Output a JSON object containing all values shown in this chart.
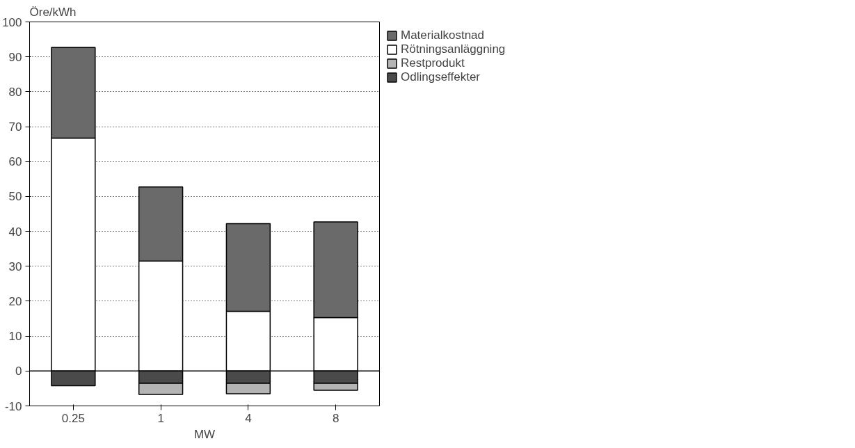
{
  "chart_data": {
    "type": "bar",
    "stacked": true,
    "xlabel": "MW",
    "ylabel": "Öre/kWh",
    "categories": [
      "0.25",
      "1",
      "4",
      "8"
    ],
    "series": [
      {
        "name": "Odlingseffekter",
        "color": "#4a4a4a",
        "values": [
          -4.2,
          -3.5,
          -3.5,
          -3.5
        ]
      },
      {
        "name": "Restprodukt",
        "color": "#b4b4b4",
        "values": [
          0,
          -3.2,
          -3,
          -2
        ]
      },
      {
        "name": "Rötningsanläggning",
        "color": "#ffffff",
        "values": [
          66.7,
          31.5,
          17.1,
          15.3
        ]
      },
      {
        "name": "Materialkostnad",
        "color": "#6a6a6a",
        "values": [
          26,
          21.2,
          25.1,
          27.4
        ]
      }
    ],
    "ylim": [
      -10,
      100
    ],
    "yticks": [
      -10,
      0,
      10,
      20,
      30,
      40,
      50,
      60,
      70,
      80,
      90,
      100
    ],
    "ref_lines": [
      {
        "axis": "y",
        "value": 0,
        "color": "#000000"
      }
    ],
    "grid": "y",
    "legend": "top right"
  }
}
